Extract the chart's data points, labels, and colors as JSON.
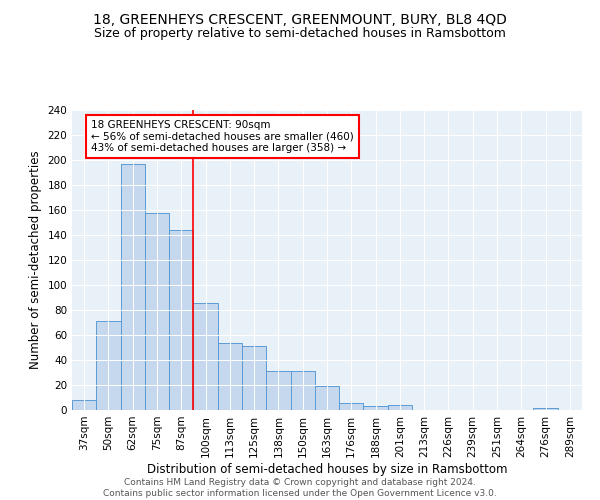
{
  "title": "18, GREENHEYS CRESCENT, GREENMOUNT, BURY, BL8 4QD",
  "subtitle": "Size of property relative to semi-detached houses in Ramsbottom",
  "xlabel": "Distribution of semi-detached houses by size in Ramsbottom",
  "ylabel": "Number of semi-detached properties",
  "categories": [
    "37sqm",
    "50sqm",
    "62sqm",
    "75sqm",
    "87sqm",
    "100sqm",
    "113sqm",
    "125sqm",
    "138sqm",
    "150sqm",
    "163sqm",
    "176sqm",
    "188sqm",
    "201sqm",
    "213sqm",
    "226sqm",
    "239sqm",
    "251sqm",
    "264sqm",
    "276sqm",
    "289sqm"
  ],
  "values": [
    8,
    71,
    197,
    158,
    144,
    86,
    54,
    51,
    31,
    31,
    19,
    6,
    3,
    4,
    0,
    0,
    0,
    0,
    0,
    2,
    0
  ],
  "bar_color": "#c5d8ed",
  "bar_edge_color": "#5b9bd5",
  "red_line_index": 4.5,
  "annotation_text": "18 GREENHEYS CRESCENT: 90sqm\n← 56% of semi-detached houses are smaller (460)\n43% of semi-detached houses are larger (358) →",
  "annotation_box_color": "white",
  "annotation_box_edge_color": "red",
  "ylim": [
    0,
    240
  ],
  "yticks": [
    0,
    20,
    40,
    60,
    80,
    100,
    120,
    140,
    160,
    180,
    200,
    220,
    240
  ],
  "footer_line1": "Contains HM Land Registry data © Crown copyright and database right 2024.",
  "footer_line2": "Contains public sector information licensed under the Open Government Licence v3.0.",
  "background_color": "#e8f0f8",
  "title_fontsize": 10,
  "subtitle_fontsize": 9,
  "axis_label_fontsize": 8.5,
  "tick_fontsize": 7.5,
  "annotation_fontsize": 7.5,
  "footer_fontsize": 6.5
}
